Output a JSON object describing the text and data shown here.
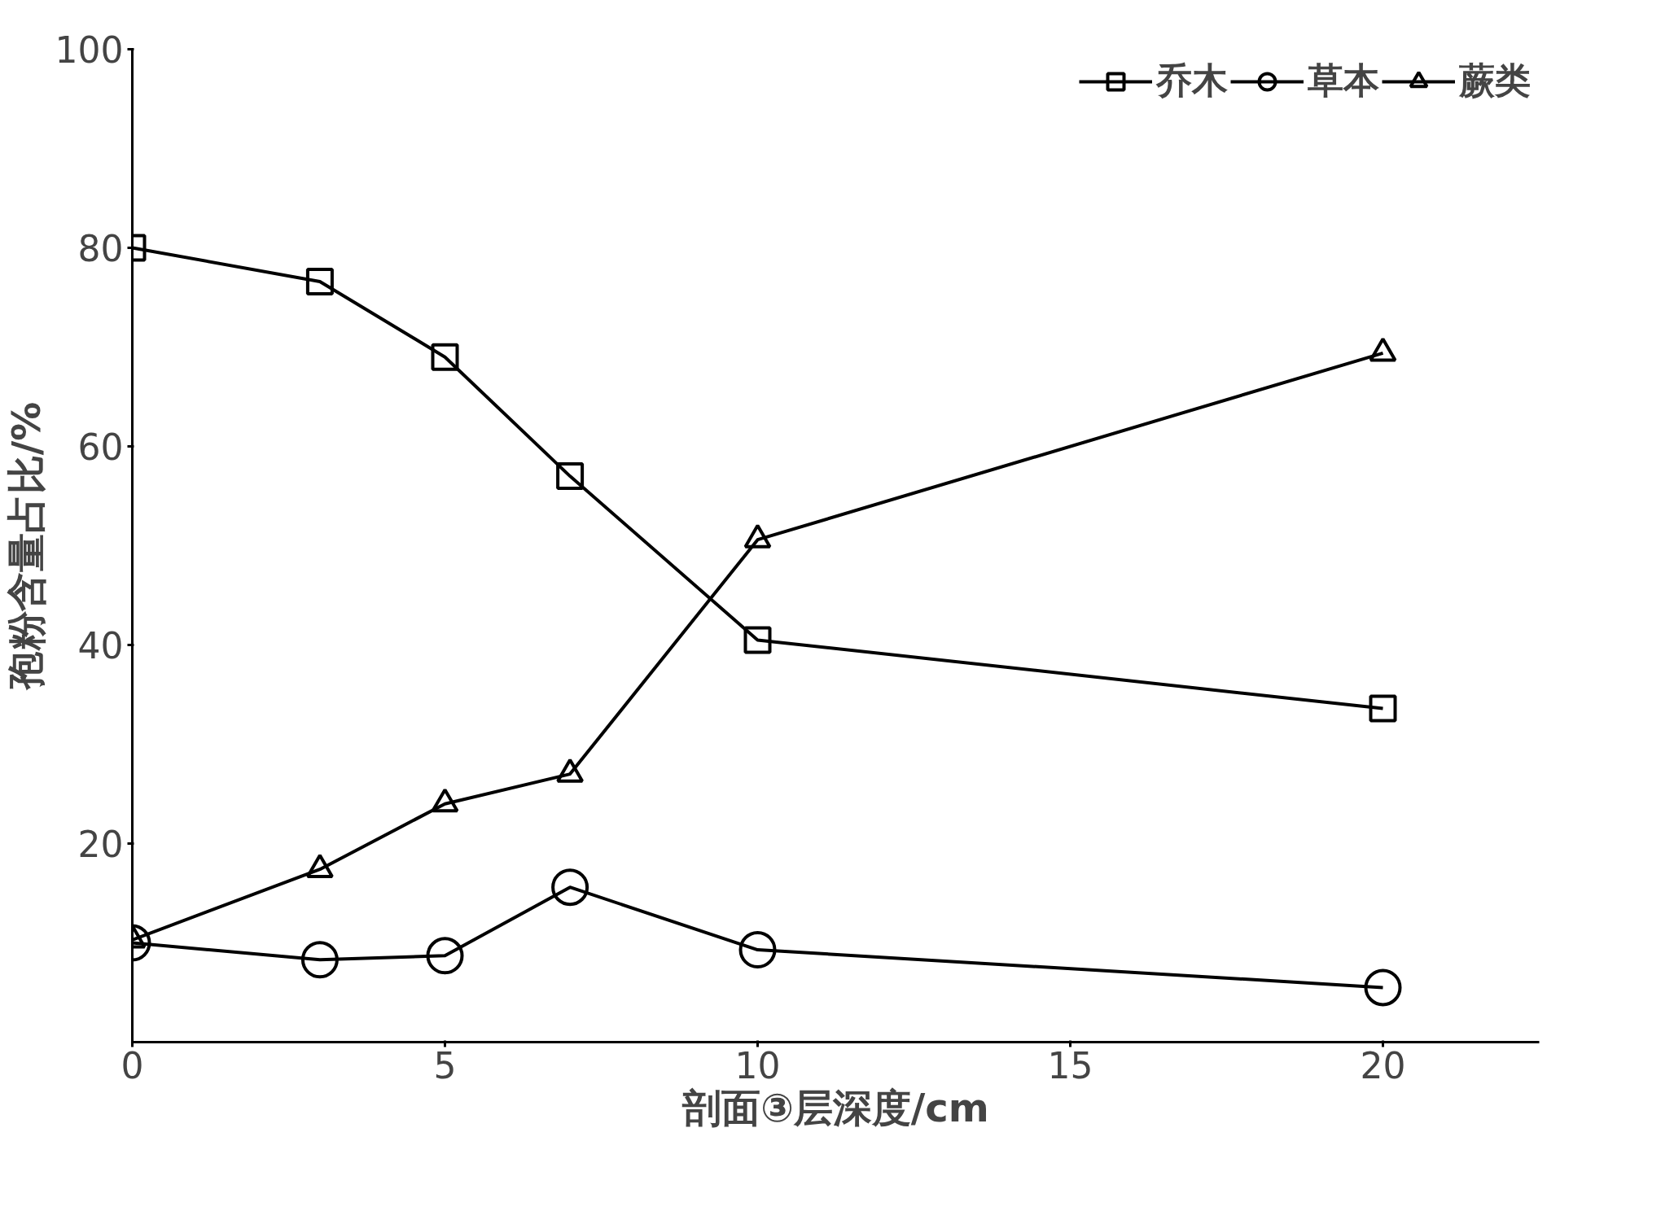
{
  "chart_data": {
    "type": "line",
    "xlabel": "剖面③层深度/cm",
    "ylabel": "孢粉含量占比/%",
    "x": [
      0,
      3,
      5,
      7,
      10,
      20
    ],
    "series": [
      {
        "name": "乔木",
        "color": "#000000",
        "marker": "square",
        "values": [
          80,
          76.6,
          69,
          57,
          40.5,
          33.6
        ]
      },
      {
        "name": "草本",
        "color": "#000000",
        "marker": "circle",
        "values": [
          10,
          8.3,
          8.7,
          15.6,
          9.3,
          5.5
        ]
      },
      {
        "name": "蕨类",
        "color": "#000000",
        "marker": "triangle",
        "values": [
          10.3,
          17.4,
          24,
          27,
          50.6,
          69.4
        ]
      }
    ],
    "xlim": [
      0,
      22.5
    ],
    "xticks": [
      0,
      5,
      10,
      15,
      20
    ],
    "ylim": [
      0,
      100
    ],
    "yticks": [
      20,
      40,
      60,
      80,
      100
    ],
    "grid": false,
    "legend": "top right",
    "line_style": "solid"
  }
}
